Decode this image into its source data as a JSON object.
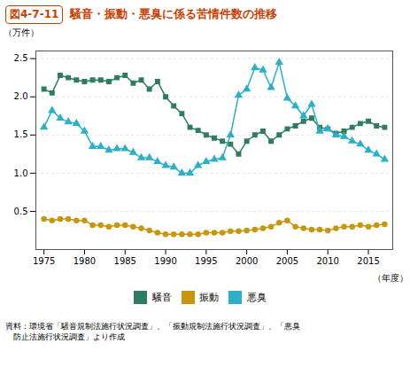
{
  "chart_data": {
    "type": "line",
    "title": "騒音・振動・悪臭に係る苦情件数の推移",
    "annotations": [
      "図4-7-11",
      "資料：環境省「騒音規制法施行状況調査」、「振動規制法施行状況調査」、「悪臭",
      "防止法施行状況調査」より作成"
    ],
    "x_label": "（年度）",
    "y_label": "（万件）",
    "x": [
      1975,
      1976,
      1977,
      1978,
      1979,
      1980,
      1981,
      1982,
      1983,
      1984,
      1985,
      1986,
      1987,
      1988,
      1989,
      1990,
      1991,
      1992,
      1993,
      1994,
      1995,
      1996,
      1997,
      1998,
      1999,
      2000,
      2001,
      2002,
      2003,
      2004,
      2005,
      2006,
      2007,
      2008,
      2009,
      2010,
      2011,
      2012,
      2013,
      2014,
      2015,
      2016,
      2017
    ],
    "series": [
      {
        "name": "騒音",
        "color": "#2e7d5e",
        "marker": "square",
        "values": [
          2.1,
          2.05,
          2.28,
          2.25,
          2.22,
          2.2,
          2.22,
          2.22,
          2.2,
          2.25,
          2.28,
          2.18,
          2.22,
          2.1,
          2.2,
          2.0,
          1.88,
          1.78,
          1.6,
          1.56,
          1.5,
          1.46,
          1.42,
          1.38,
          1.25,
          1.42,
          1.5,
          1.55,
          1.42,
          1.5,
          1.58,
          1.62,
          1.68,
          1.72,
          1.6,
          1.58,
          1.52,
          1.55,
          1.6,
          1.65,
          1.68,
          1.62,
          1.6
        ]
      },
      {
        "name": "振動",
        "color": "#c8960c",
        "marker": "circle",
        "values": [
          0.4,
          0.38,
          0.4,
          0.4,
          0.38,
          0.38,
          0.32,
          0.32,
          0.3,
          0.32,
          0.32,
          0.3,
          0.28,
          0.25,
          0.22,
          0.2,
          0.2,
          0.2,
          0.2,
          0.2,
          0.22,
          0.22,
          0.22,
          0.24,
          0.24,
          0.25,
          0.26,
          0.28,
          0.3,
          0.35,
          0.38,
          0.3,
          0.28,
          0.26,
          0.26,
          0.25,
          0.28,
          0.3,
          0.3,
          0.32,
          0.3,
          0.32,
          0.33
        ]
      },
      {
        "name": "悪臭",
        "color": "#2ab0c8",
        "marker": "triangle",
        "values": [
          1.6,
          1.82,
          1.72,
          1.67,
          1.65,
          1.55,
          1.35,
          1.35,
          1.3,
          1.32,
          1.32,
          1.27,
          1.2,
          1.2,
          1.15,
          1.1,
          1.08,
          1.0,
          1.0,
          1.1,
          1.15,
          1.18,
          1.2,
          1.5,
          2.02,
          2.1,
          2.38,
          2.35,
          2.12,
          2.45,
          1.98,
          1.88,
          1.75,
          1.9,
          1.55,
          1.58,
          1.5,
          1.48,
          1.42,
          1.38,
          1.3,
          1.25,
          1.18
        ]
      }
    ],
    "title_color": "#c84000",
    "xlim": [
      1974,
      2018
    ],
    "xticks": [
      1975,
      1980,
      1985,
      1990,
      1995,
      2000,
      2005,
      2010,
      2015
    ],
    "ylim": [
      0,
      2.6
    ],
    "yticks": [
      0.5,
      {
        "value": 1,
        "label": "1.0"
      },
      1.5,
      {
        "value": 2,
        "label": "2.0"
      },
      2.5
    ],
    "grid": true,
    "legend": "bottom"
  }
}
